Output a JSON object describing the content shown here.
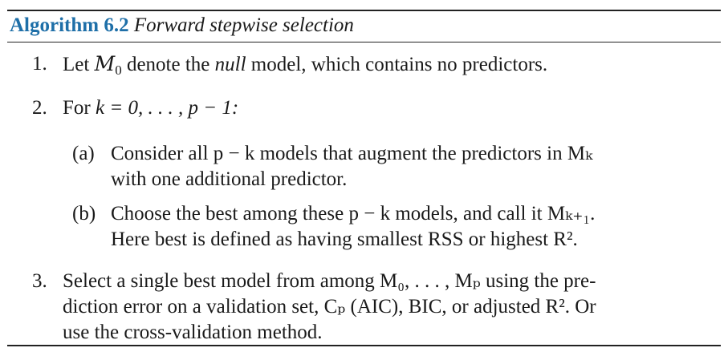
{
  "header": {
    "label": "Algorithm 6.2",
    "title": "Forward stepwise selection"
  },
  "steps": [
    {
      "number": "1.",
      "parts": {
        "a": "Let ",
        "sym": "M",
        "sub": "0",
        "b": " denote the ",
        "em": "null",
        "c": " model, which contains no predictors."
      }
    },
    {
      "number": "2.",
      "parts": {
        "a": "For ",
        "math": "k = 0, . . . , p − 1:"
      }
    },
    {
      "number": "3.",
      "lines": [
        "Select a single best model from among M₀, . . . , Mₚ using the pre-",
        "diction error on a validation set, Cₚ (AIC), BIC, or adjusted R². Or",
        "use the cross-validation method."
      ]
    }
  ],
  "substeps": [
    {
      "label": "(a)",
      "lines": [
        "Consider all p − k models that augment the predictors in Mₖ",
        "with one additional predictor."
      ]
    },
    {
      "label": "(b)",
      "lines": [
        "Choose the best among these p − k models, and call it Mₖ₊₁.",
        "Here best is defined as having smallest RSS or highest R²."
      ]
    }
  ]
}
